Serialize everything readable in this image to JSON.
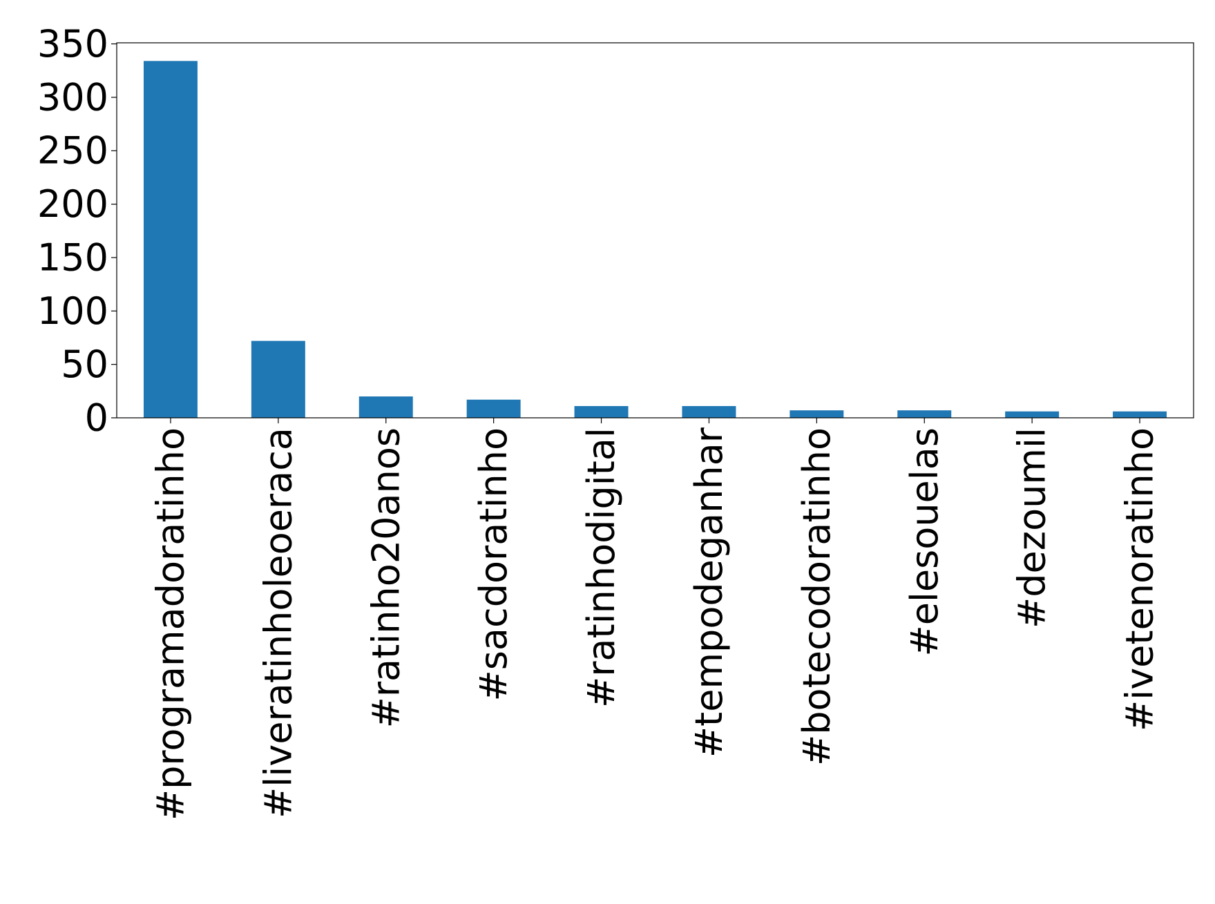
{
  "chart_data": {
    "type": "bar",
    "categories": [
      "#programadoratinho",
      "#liveratinholeoeraca",
      "#ratinho20anos",
      "#sacdoratinho",
      "#ratinhodigital",
      "#tempodeganhar",
      "#botecodoratinho",
      "#elesouelas",
      "#dezoumil",
      "#ivetenoratinho"
    ],
    "values": [
      334,
      72,
      20,
      17,
      11,
      11,
      7,
      7,
      6,
      6
    ],
    "color": "#1f77b4",
    "ylim": [
      0,
      351
    ],
    "yticks": [
      0,
      50,
      100,
      150,
      200,
      250,
      300,
      350
    ],
    "grid": false
  }
}
